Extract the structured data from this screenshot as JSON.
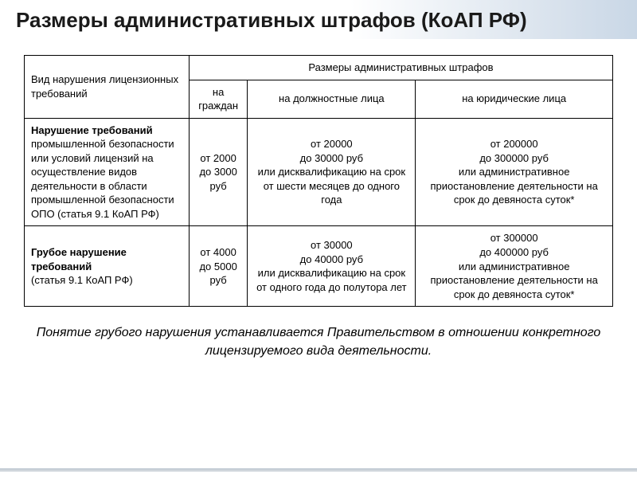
{
  "title": "Размеры административных штрафов (КоАП РФ)",
  "table": {
    "header": {
      "col1": "Вид нарушения лицензионных требований",
      "spancol": "Размеры административных штрафов",
      "sub1": "на граждан",
      "sub2": "на должностные лица",
      "sub3": "на юридические лица"
    },
    "rows": [
      {
        "violation_bold": "Нарушение требований",
        "violation_rest": " промышленной безопасности или условий лицензий на осуществление видов деятельности в области промышленной безопасности ОПО (статья 9.1 КоАП РФ)",
        "c1": "от 2000\nдо 3000 руб",
        "c2": "от 20000\nдо 30000 руб\nили дисквалификацию на срок от шести месяцев до одного года",
        "c3": "от 200000\nдо 300000 руб\nили административное приостановление деятельности на срок до девяноста суток*"
      },
      {
        "violation_bold": "Грубое нарушение требований",
        "violation_rest": "\n(статья 9.1 КоАП РФ)",
        "c1": "от 4000\nдо 5000 руб",
        "c2": "от 30000\nдо 40000 руб\nили дисквалификацию на срок от одного года до полутора лет",
        "c3": "от 300000\nдо 400000 руб\nили административное приостановление деятельности на срок до девяноста суток*"
      }
    ]
  },
  "caption": "Понятие грубого нарушения устанавливается Правительством в отношении конкретного лицензируемого вида деятельности.",
  "colors": {
    "title_fg": "#1a1a1a",
    "table_border": "#000000",
    "gradient_end": "#c9d7e6",
    "footer_line": "#d0d6dc"
  },
  "typography": {
    "title_pt": 26,
    "table_pt": 13,
    "caption_pt": 16,
    "caption_style": "italic"
  }
}
